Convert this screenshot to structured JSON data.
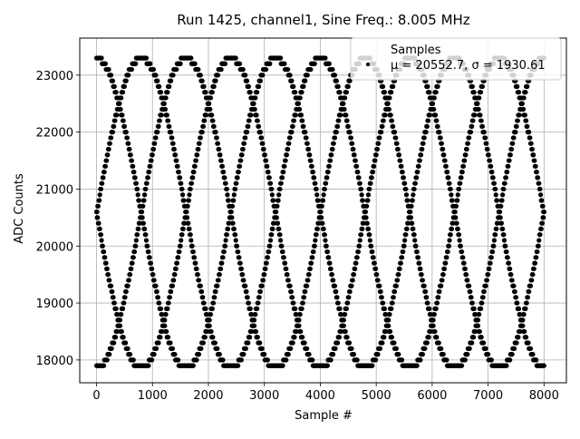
{
  "chart_data": {
    "type": "scatter",
    "title": "Run 1425, channel1, Sine Freq.: 8.005 MHz",
    "xlabel": "Sample #",
    "ylabel": "ADC Counts",
    "xlim": [
      -300,
      8400
    ],
    "ylim": [
      17600,
      23650
    ],
    "x_ticks": [
      0,
      1000,
      2000,
      3000,
      4000,
      5000,
      6000,
      7000,
      8000
    ],
    "y_ticks": [
      18000,
      19000,
      20000,
      21000,
      22000,
      23000
    ],
    "x_tick_labels": [
      "0",
      "1000",
      "2000",
      "3000",
      "4000",
      "5000",
      "6000",
      "7000",
      "8000"
    ],
    "y_tick_labels": [
      "18000",
      "19000",
      "20000",
      "21000",
      "22000",
      "23000"
    ],
    "grid": true,
    "legend_placement": "top-right",
    "marker_color": "#000000",
    "grid_color": "#b0b0b0",
    "series": [
      {
        "name": "Samples",
        "description": "μ = 20552.7, σ = 1930.61",
        "signal": {
          "offset": 20580,
          "amplitude": 2720,
          "clip_high": 23300,
          "clip_low": 17870,
          "period_samples": 3200,
          "start_sample": 0,
          "end_sample": 8000,
          "sample_step": 10,
          "adc_step": 100,
          "phases": [
            {
              "x_at_max": 0
            },
            {
              "x_at_max": 1600
            },
            {
              "x_at_max": 800
            },
            {
              "x_at_max": 2400
            }
          ]
        }
      }
    ]
  },
  "legend": {
    "title": "Samples",
    "entry": "μ = 20552.7, σ = 1930.61"
  }
}
